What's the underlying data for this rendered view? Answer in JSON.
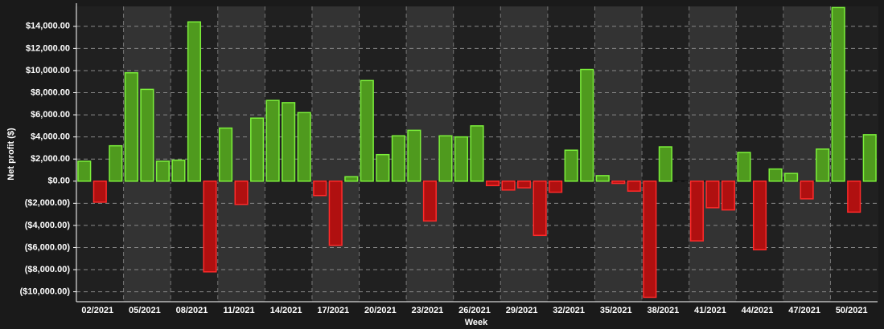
{
  "chart_data": {
    "type": "bar",
    "x_label": "Week",
    "y_label": "Net profit ($)",
    "categories": [
      null,
      "02/2021",
      null,
      null,
      "05/2021",
      null,
      null,
      "08/2021",
      null,
      null,
      "11/2021",
      null,
      null,
      "14/2021",
      null,
      null,
      "17/2021",
      null,
      null,
      "20/2021",
      null,
      null,
      "23/2021",
      null,
      null,
      "26/2021",
      null,
      null,
      "29/2021",
      null,
      null,
      "32/2021",
      null,
      null,
      "35/2021",
      null,
      null,
      "38/2021",
      null,
      null,
      "41/2021",
      null,
      null,
      "44/2021",
      null,
      null,
      "47/2021",
      null,
      null,
      "50/2021",
      null
    ],
    "values": [
      1800,
      -1900,
      3200,
      9800,
      8300,
      1800,
      1900,
      14400,
      -8200,
      4800,
      -2100,
      5700,
      7300,
      7100,
      6200,
      -1300,
      -5800,
      400,
      9100,
      2400,
      4100,
      4600,
      -3600,
      4100,
      4000,
      5000,
      -400,
      -800,
      -600,
      -4900,
      -1000,
      2800,
      10100,
      500,
      -200,
      -900,
      -10500,
      3100,
      0,
      -5400,
      -2400,
      -2600,
      2600,
      -6200,
      1100,
      700,
      -1600,
      2900,
      15700,
      -2800,
      4200
    ],
    "positive_color": "#4f9a1e",
    "negative_color": "#b01010",
    "ylim": [
      -10900,
      15800
    ],
    "yticks": [
      {
        "value": -10000,
        "label": "($10,000.00)"
      },
      {
        "value": -8000,
        "label": "($8,000.00)"
      },
      {
        "value": -6000,
        "label": "($6,000.00)"
      },
      {
        "value": -4000,
        "label": "($4,000.00)"
      },
      {
        "value": -2000,
        "label": "($2,000.00)"
      },
      {
        "value": 0,
        "label": "$0.00"
      },
      {
        "value": 2000,
        "label": "$2,000.00"
      },
      {
        "value": 4000,
        "label": "$4,000.00"
      },
      {
        "value": 6000,
        "label": "$6,000.00"
      },
      {
        "value": 8000,
        "label": "$8,000.00"
      },
      {
        "value": 10000,
        "label": "$10,000.00"
      },
      {
        "value": 12000,
        "label": "$12,000.00"
      },
      {
        "value": 14000,
        "label": "$14,000.00"
      }
    ],
    "grid": true
  }
}
